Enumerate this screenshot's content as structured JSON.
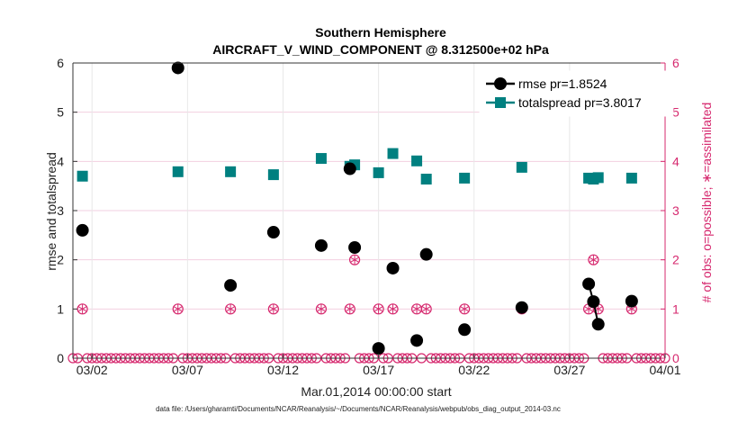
{
  "chart_data": {
    "type": "scatter",
    "title": "Southern Hemisphere",
    "subtitle": "AIRCRAFT_V_WIND_COMPONENT @ 8.312500e+02 hPa",
    "xlabel": "Mar.01,2014 00:00:00 start",
    "ylabel_left": "rmse and totalspread",
    "ylabel_right": "# of obs: o=possible; ∗=assimilated",
    "xlim": [
      0,
      31
    ],
    "ylim": [
      0,
      6
    ],
    "x_ticks": [
      {
        "value": 1,
        "label": "03/02"
      },
      {
        "value": 6,
        "label": "03/07"
      },
      {
        "value": 11,
        "label": "03/12"
      },
      {
        "value": 16,
        "label": "03/17"
      },
      {
        "value": 21,
        "label": "03/22"
      },
      {
        "value": 26,
        "label": "03/27"
      },
      {
        "value": 31,
        "label": "04/01"
      }
    ],
    "y_ticks_left": [
      "0",
      "1",
      "2",
      "3",
      "4",
      "5",
      "6"
    ],
    "y_ticks_right": [
      "0",
      "1",
      "2",
      "3",
      "4",
      "5",
      "6"
    ],
    "grid": true,
    "legend_position": "top-right",
    "series": [
      {
        "name": "rmse",
        "legend_label": "rmse pr=1.8524",
        "color": "#000000",
        "points": [
          {
            "x": 0.5,
            "y": 2.6
          },
          {
            "x": 5.5,
            "y": 5.9
          },
          {
            "x": 8.25,
            "y": 1.48
          },
          {
            "x": 10.5,
            "y": 2.56
          },
          {
            "x": 13.0,
            "y": 2.29
          },
          {
            "x": 14.5,
            "y": 3.85
          },
          {
            "x": 14.75,
            "y": 2.25
          },
          {
            "x": 16.0,
            "y": 0.2
          },
          {
            "x": 16.75,
            "y": 1.83
          },
          {
            "x": 18.0,
            "y": 0.36
          },
          {
            "x": 18.5,
            "y": 2.11
          },
          {
            "x": 20.5,
            "y": 0.58
          },
          {
            "x": 23.5,
            "y": 1.03
          },
          {
            "x": 27.0,
            "y": 1.51
          },
          {
            "x": 27.25,
            "y": 1.15
          },
          {
            "x": 27.5,
            "y": 0.69
          },
          {
            "x": 29.25,
            "y": 1.16
          }
        ],
        "connected_pairs": [
          [
            27.0,
            27.25
          ],
          [
            27.25,
            27.5
          ]
        ]
      },
      {
        "name": "totalspread",
        "legend_label": "totalspread pr=3.8017",
        "color": "#008080",
        "points": [
          {
            "x": 0.5,
            "y": 3.7
          },
          {
            "x": 5.5,
            "y": 3.79
          },
          {
            "x": 8.25,
            "y": 3.79
          },
          {
            "x": 10.5,
            "y": 3.73
          },
          {
            "x": 13.0,
            "y": 4.06
          },
          {
            "x": 14.5,
            "y": 3.9
          },
          {
            "x": 14.75,
            "y": 3.93
          },
          {
            "x": 16.0,
            "y": 3.77
          },
          {
            "x": 16.75,
            "y": 4.16
          },
          {
            "x": 18.0,
            "y": 4.01
          },
          {
            "x": 18.5,
            "y": 3.64
          },
          {
            "x": 20.5,
            "y": 3.66
          },
          {
            "x": 23.5,
            "y": 3.88
          },
          {
            "x": 27.0,
            "y": 3.66
          },
          {
            "x": 27.25,
            "y": 3.64
          },
          {
            "x": 27.5,
            "y": 3.67
          },
          {
            "x": 29.25,
            "y": 3.66
          }
        ],
        "connected_pairs": [
          [
            27.0,
            27.25
          ],
          [
            27.25,
            27.5
          ]
        ]
      },
      {
        "name": "obs_possible_assimilated",
        "color": "#d6286e",
        "axis": "right",
        "points": [
          {
            "x": 0.5,
            "y": 1
          },
          {
            "x": 5.5,
            "y": 1
          },
          {
            "x": 8.25,
            "y": 1
          },
          {
            "x": 10.5,
            "y": 1
          },
          {
            "x": 13.0,
            "y": 1
          },
          {
            "x": 14.5,
            "y": 1
          },
          {
            "x": 14.75,
            "y": 2
          },
          {
            "x": 16.0,
            "y": 1
          },
          {
            "x": 16.75,
            "y": 1
          },
          {
            "x": 18.0,
            "y": 1
          },
          {
            "x": 18.5,
            "y": 1
          },
          {
            "x": 20.5,
            "y": 1
          },
          {
            "x": 23.5,
            "y": 1
          },
          {
            "x": 27.0,
            "y": 1
          },
          {
            "x": 27.25,
            "y": 2
          },
          {
            "x": 27.5,
            "y": 1
          },
          {
            "x": 29.25,
            "y": 1
          }
        ],
        "zero_marker_spacing_days": 0.25
      }
    ]
  },
  "footer_text": "data file: /Users/gharamti/Documents/NCAR/Reanalysis/~/Documents/NCAR/Reanalysis/webpub/obs_diag_output_2014-03.nc"
}
